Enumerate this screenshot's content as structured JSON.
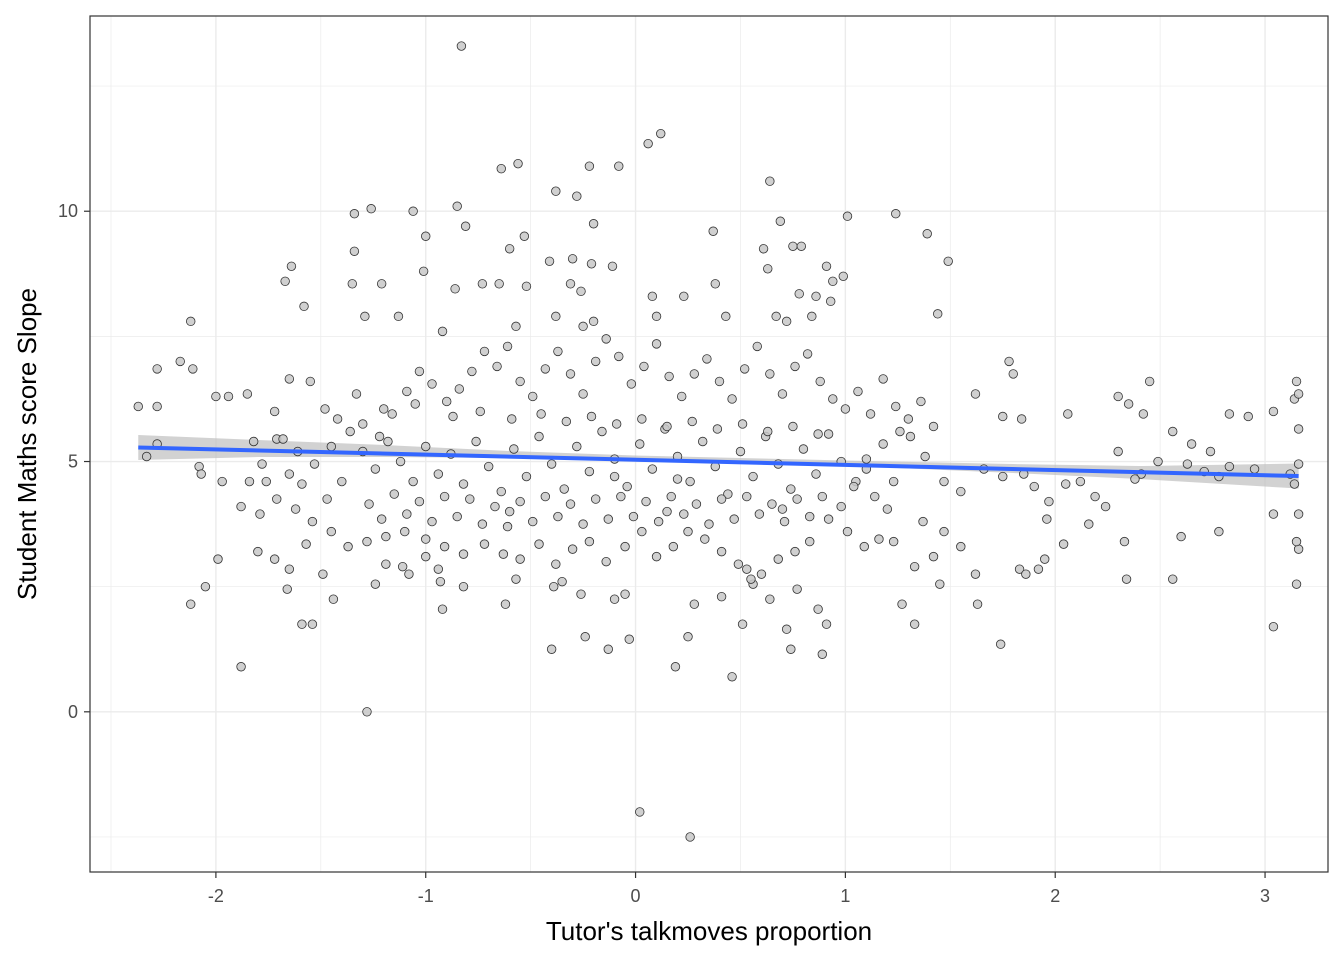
{
  "chart_data": {
    "type": "scatter",
    "xlabel": "Tutor's talkmoves proportion",
    "ylabel": "Student Maths score Slope",
    "xlim": [
      -2.6,
      3.3
    ],
    "ylim": [
      -3.2,
      13.9
    ],
    "xticks": [
      -2,
      -1,
      0,
      1,
      2,
      3
    ],
    "xtick_labels": [
      "-2",
      "-1",
      "0",
      "1",
      "2",
      "3"
    ],
    "yticks": [
      0,
      5,
      10
    ],
    "ytick_labels": [
      "0",
      "5",
      "10"
    ],
    "grid": true,
    "legend": "none",
    "theme": "bw",
    "colors": {
      "point_fill": "#c8c8c8",
      "point_stroke": "#333333",
      "trend_line": "#3366ff",
      "confidence_band": "#bfbfbf",
      "grid": "#ebebeb",
      "panel_border": "#333333"
    },
    "points": [
      [
        -0.83,
        13.3
      ],
      [
        0.12,
        11.55
      ],
      [
        0.06,
        11.35
      ],
      [
        -0.08,
        10.9
      ],
      [
        -0.56,
        10.95
      ],
      [
        -0.64,
        10.85
      ],
      [
        -0.22,
        10.9
      ],
      [
        -0.38,
        10.4
      ],
      [
        -0.28,
        10.3
      ],
      [
        0.64,
        10.6
      ],
      [
        -1.26,
        10.05
      ],
      [
        -1.34,
        9.95
      ],
      [
        -1.06,
        10.0
      ],
      [
        -0.85,
        10.1
      ],
      [
        -0.81,
        9.7
      ],
      [
        -0.2,
        9.75
      ],
      [
        1.01,
        9.9
      ],
      [
        1.24,
        9.95
      ],
      [
        0.69,
        9.8
      ],
      [
        1.39,
        9.55
      ],
      [
        -1.34,
        9.2
      ],
      [
        -1.0,
        9.5
      ],
      [
        -0.53,
        9.5
      ],
      [
        -0.6,
        9.25
      ],
      [
        -0.41,
        9.0
      ],
      [
        -0.3,
        9.05
      ],
      [
        -0.21,
        8.95
      ],
      [
        -0.11,
        8.9
      ],
      [
        0.37,
        9.6
      ],
      [
        0.61,
        9.25
      ],
      [
        0.75,
        9.3
      ],
      [
        0.79,
        9.3
      ],
      [
        0.91,
        8.9
      ],
      [
        1.49,
        9.0
      ],
      [
        -1.64,
        8.9
      ],
      [
        -1.67,
        8.6
      ],
      [
        -1.58,
        8.1
      ],
      [
        -1.35,
        8.55
      ],
      [
        -1.21,
        8.55
      ],
      [
        -1.01,
        8.8
      ],
      [
        -0.86,
        8.45
      ],
      [
        -0.73,
        8.55
      ],
      [
        -0.65,
        8.55
      ],
      [
        -0.52,
        8.5
      ],
      [
        -0.31,
        8.55
      ],
      [
        -0.26,
        8.4
      ],
      [
        0.08,
        8.3
      ],
      [
        0.23,
        8.3
      ],
      [
        0.38,
        8.55
      ],
      [
        0.63,
        8.85
      ],
      [
        0.94,
        8.6
      ],
      [
        0.99,
        8.7
      ],
      [
        0.78,
        8.35
      ],
      [
        0.86,
        8.3
      ],
      [
        0.93,
        8.2
      ],
      [
        -2.12,
        7.8
      ],
      [
        -1.29,
        7.9
      ],
      [
        -1.13,
        7.9
      ],
      [
        -0.92,
        7.6
      ],
      [
        -0.57,
        7.7
      ],
      [
        -0.38,
        7.9
      ],
      [
        -0.25,
        7.7
      ],
      [
        -0.2,
        7.8
      ],
      [
        0.1,
        7.9
      ],
      [
        0.43,
        7.9
      ],
      [
        0.67,
        7.9
      ],
      [
        0.72,
        7.8
      ],
      [
        0.84,
        7.9
      ],
      [
        1.44,
        7.95
      ],
      [
        -2.17,
        7.0
      ],
      [
        -2.11,
        6.85
      ],
      [
        -2.28,
        6.85
      ],
      [
        -1.85,
        6.35
      ],
      [
        -1.94,
        6.3
      ],
      [
        -2.0,
        6.3
      ],
      [
        -1.65,
        6.65
      ],
      [
        -1.55,
        6.6
      ],
      [
        -2.37,
        6.1
      ],
      [
        -2.28,
        6.1
      ],
      [
        -1.72,
        6.0
      ],
      [
        1.62,
        6.35
      ],
      [
        1.75,
        5.9
      ],
      [
        1.78,
        7.0
      ],
      [
        1.8,
        6.75
      ],
      [
        1.84,
        5.85
      ],
      [
        2.06,
        5.95
      ],
      [
        2.3,
        6.3
      ],
      [
        2.35,
        6.15
      ],
      [
        2.45,
        6.6
      ],
      [
        2.83,
        5.95
      ],
      [
        3.04,
        6.0
      ],
      [
        3.14,
        6.25
      ],
      [
        3.15,
        6.6
      ],
      [
        3.16,
        6.35
      ],
      [
        2.42,
        5.95
      ],
      [
        2.56,
        5.6
      ],
      [
        2.65,
        5.35
      ],
      [
        2.74,
        5.2
      ],
      [
        2.92,
        5.9
      ],
      [
        3.16,
        5.65
      ],
      [
        -2.33,
        5.1
      ],
      [
        -2.28,
        5.35
      ],
      [
        -2.08,
        4.9
      ],
      [
        -2.07,
        4.75
      ],
      [
        -1.97,
        4.6
      ],
      [
        -1.84,
        4.6
      ],
      [
        -1.76,
        4.6
      ],
      [
        -1.82,
        5.4
      ],
      [
        -1.71,
        5.45
      ],
      [
        -1.68,
        5.45
      ],
      [
        -1.78,
        4.95
      ],
      [
        -1.61,
        5.2
      ],
      [
        -1.65,
        4.75
      ],
      [
        -2.12,
        2.15
      ],
      [
        -2.05,
        2.5
      ],
      [
        -1.99,
        3.05
      ],
      [
        -1.88,
        0.9
      ],
      [
        -1.8,
        3.2
      ],
      [
        -1.72,
        3.05
      ],
      [
        -1.65,
        2.85
      ],
      [
        -1.66,
        2.45
      ],
      [
        -1.59,
        1.75
      ],
      [
        -1.57,
        3.35
      ],
      [
        -1.54,
        1.75
      ],
      [
        -1.49,
        2.75
      ],
      [
        -1.44,
        2.25
      ],
      [
        -1.28,
        0.0
      ],
      [
        -1.24,
        2.55
      ],
      [
        -1.19,
        2.95
      ],
      [
        -1.11,
        2.9
      ],
      [
        -1.08,
        2.75
      ],
      [
        -1.0,
        3.1
      ],
      [
        -0.94,
        2.85
      ],
      [
        -0.93,
        2.6
      ],
      [
        -0.92,
        2.05
      ],
      [
        -0.82,
        2.5
      ],
      [
        -0.62,
        2.15
      ],
      [
        -0.57,
        2.65
      ],
      [
        -0.4,
        1.25
      ],
      [
        -0.39,
        2.5
      ],
      [
        -0.35,
        2.6
      ],
      [
        -0.26,
        2.35
      ],
      [
        -0.24,
        1.5
      ],
      [
        -0.13,
        1.25
      ],
      [
        -0.1,
        2.25
      ],
      [
        -0.05,
        2.35
      ],
      [
        -0.03,
        1.45
      ],
      [
        0.02,
        -2.0
      ],
      [
        0.26,
        -2.5
      ],
      [
        0.25,
        1.5
      ],
      [
        0.19,
        0.9
      ],
      [
        0.28,
        2.15
      ],
      [
        0.41,
        2.3
      ],
      [
        0.46,
        0.7
      ],
      [
        0.51,
        1.75
      ],
      [
        0.56,
        2.55
      ],
      [
        0.64,
        2.25
      ],
      [
        0.72,
        1.65
      ],
      [
        0.77,
        2.45
      ],
      [
        0.87,
        2.05
      ],
      [
        0.91,
        1.75
      ],
      [
        0.89,
        1.15
      ],
      [
        0.74,
        1.25
      ],
      [
        1.27,
        2.15
      ],
      [
        1.33,
        1.75
      ],
      [
        1.45,
        2.55
      ],
      [
        1.63,
        2.15
      ],
      [
        1.62,
        2.75
      ],
      [
        1.74,
        1.35
      ],
      [
        1.83,
        2.85
      ],
      [
        1.86,
        2.75
      ],
      [
        1.92,
        2.85
      ],
      [
        1.95,
        3.05
      ],
      [
        1.96,
        3.85
      ],
      [
        1.97,
        4.2
      ],
      [
        2.04,
        3.35
      ],
      [
        2.16,
        3.75
      ],
      [
        2.24,
        4.1
      ],
      [
        2.33,
        3.4
      ],
      [
        2.34,
        2.65
      ],
      [
        2.56,
        2.65
      ],
      [
        2.6,
        3.5
      ],
      [
        2.78,
        3.6
      ],
      [
        3.04,
        1.7
      ],
      [
        3.04,
        3.95
      ],
      [
        3.15,
        2.55
      ],
      [
        3.16,
        3.25
      ],
      [
        3.15,
        3.4
      ],
      [
        3.16,
        3.95
      ],
      [
        3.14,
        4.55
      ],
      [
        3.16,
        4.95
      ],
      [
        3.12,
        4.75
      ],
      [
        2.95,
        4.85
      ],
      [
        2.83,
        4.9
      ],
      [
        2.78,
        4.7
      ],
      [
        2.71,
        4.8
      ],
      [
        2.63,
        4.95
      ],
      [
        2.49,
        5.0
      ],
      [
        2.41,
        4.75
      ],
      [
        2.38,
        4.65
      ],
      [
        2.3,
        5.2
      ],
      [
        2.19,
        4.3
      ],
      [
        2.12,
        4.6
      ],
      [
        2.05,
        4.55
      ],
      [
        1.9,
        4.5
      ],
      [
        1.85,
        4.75
      ],
      [
        1.75,
        4.7
      ],
      [
        1.66,
        4.85
      ],
      [
        1.55,
        4.4
      ],
      [
        1.47,
        4.6
      ],
      [
        1.38,
        5.1
      ],
      [
        1.31,
        5.5
      ],
      [
        1.26,
        5.6
      ],
      [
        1.18,
        5.35
      ],
      [
        1.1,
        5.05
      ],
      [
        1.05,
        4.6
      ],
      [
        0.98,
        4.1
      ],
      [
        1.14,
        4.3
      ],
      [
        1.23,
        4.6
      ],
      [
        1.37,
        3.8
      ],
      [
        1.47,
        3.6
      ],
      [
        1.55,
        3.3
      ],
      [
        1.42,
        3.1
      ],
      [
        1.33,
        2.9
      ],
      [
        1.23,
        3.4
      ],
      [
        1.16,
        3.45
      ],
      [
        1.09,
        3.3
      ],
      [
        1.01,
        3.6
      ],
      [
        0.92,
        3.85
      ],
      [
        0.83,
        3.4
      ],
      [
        0.76,
        3.2
      ],
      [
        0.68,
        3.05
      ],
      [
        0.6,
        2.75
      ],
      [
        0.53,
        2.85
      ],
      [
        0.55,
        2.65
      ],
      [
        0.49,
        2.95
      ],
      [
        0.41,
        3.2
      ],
      [
        0.33,
        3.45
      ],
      [
        0.25,
        3.6
      ],
      [
        0.18,
        3.3
      ],
      [
        0.1,
        3.1
      ],
      [
        0.03,
        3.6
      ],
      [
        -0.05,
        3.3
      ],
      [
        -0.14,
        3.0
      ],
      [
        -0.22,
        3.4
      ],
      [
        -0.3,
        3.25
      ],
      [
        -0.38,
        2.95
      ],
      [
        -0.46,
        3.35
      ],
      [
        -0.55,
        3.05
      ],
      [
        -0.63,
        3.15
      ],
      [
        -0.72,
        3.35
      ],
      [
        -0.82,
        3.15
      ],
      [
        -0.91,
        3.3
      ],
      [
        -1.0,
        3.45
      ],
      [
        -1.1,
        3.6
      ],
      [
        -1.19,
        3.5
      ],
      [
        -1.28,
        3.4
      ],
      [
        -1.37,
        3.3
      ],
      [
        -1.45,
        3.6
      ],
      [
        -1.54,
        3.8
      ],
      [
        -1.62,
        4.05
      ],
      [
        -1.71,
        4.25
      ],
      [
        -1.79,
        3.95
      ],
      [
        -1.88,
        4.1
      ],
      [
        -1.48,
        6.05
      ],
      [
        -1.42,
        5.85
      ],
      [
        -1.36,
        5.6
      ],
      [
        -1.3,
        5.75
      ],
      [
        -1.22,
        5.5
      ],
      [
        -1.16,
        5.95
      ],
      [
        -1.09,
        6.4
      ],
      [
        -1.03,
        6.8
      ],
      [
        -0.97,
        6.55
      ],
      [
        -0.9,
        6.2
      ],
      [
        -0.84,
        6.45
      ],
      [
        -0.78,
        6.8
      ],
      [
        -0.72,
        7.2
      ],
      [
        -0.66,
        6.9
      ],
      [
        -0.61,
        7.3
      ],
      [
        -0.55,
        6.6
      ],
      [
        -0.49,
        6.3
      ],
      [
        -0.43,
        6.85
      ],
      [
        -0.37,
        7.2
      ],
      [
        -0.31,
        6.75
      ],
      [
        -0.25,
        6.35
      ],
      [
        -0.19,
        7.0
      ],
      [
        -0.14,
        7.45
      ],
      [
        -0.08,
        7.1
      ],
      [
        -0.02,
        6.55
      ],
      [
        0.04,
        6.9
      ],
      [
        0.1,
        7.35
      ],
      [
        0.16,
        6.7
      ],
      [
        0.22,
        6.3
      ],
      [
        0.28,
        6.75
      ],
      [
        0.34,
        7.05
      ],
      [
        0.4,
        6.6
      ],
      [
        0.46,
        6.25
      ],
      [
        0.52,
        6.85
      ],
      [
        0.58,
        7.3
      ],
      [
        0.64,
        6.75
      ],
      [
        0.7,
        6.35
      ],
      [
        0.76,
        6.9
      ],
      [
        0.82,
        7.15
      ],
      [
        0.88,
        6.6
      ],
      [
        0.94,
        6.25
      ],
      [
        1.0,
        6.05
      ],
      [
        1.06,
        6.4
      ],
      [
        1.12,
        5.95
      ],
      [
        1.18,
        6.65
      ],
      [
        1.24,
        6.1
      ],
      [
        1.3,
        5.85
      ],
      [
        1.36,
        6.2
      ],
      [
        1.42,
        5.7
      ],
      [
        -1.3,
        5.2
      ],
      [
        -1.24,
        4.85
      ],
      [
        -1.18,
        5.4
      ],
      [
        -1.12,
        5.0
      ],
      [
        -1.06,
        4.6
      ],
      [
        -1.0,
        5.3
      ],
      [
        -0.94,
        4.75
      ],
      [
        -0.88,
        5.15
      ],
      [
        -0.82,
        4.55
      ],
      [
        -0.76,
        5.4
      ],
      [
        -0.7,
        4.9
      ],
      [
        -0.64,
        4.4
      ],
      [
        -0.58,
        5.25
      ],
      [
        -0.52,
        4.7
      ],
      [
        -0.46,
        5.5
      ],
      [
        -0.4,
        4.95
      ],
      [
        -0.34,
        4.45
      ],
      [
        -0.28,
        5.3
      ],
      [
        -0.22,
        4.8
      ],
      [
        -0.16,
        5.6
      ],
      [
        -0.1,
        5.05
      ],
      [
        -0.04,
        4.5
      ],
      [
        0.02,
        5.35
      ],
      [
        0.08,
        4.85
      ],
      [
        0.14,
        5.65
      ],
      [
        0.2,
        5.1
      ],
      [
        0.26,
        4.6
      ],
      [
        0.32,
        5.4
      ],
      [
        0.38,
        4.9
      ],
      [
        0.44,
        4.35
      ],
      [
        0.5,
        5.2
      ],
      [
        0.56,
        4.7
      ],
      [
        0.62,
        5.5
      ],
      [
        0.68,
        4.95
      ],
      [
        0.74,
        4.45
      ],
      [
        0.8,
        5.25
      ],
      [
        0.86,
        4.75
      ],
      [
        0.92,
        5.55
      ],
      [
        0.98,
        5.0
      ],
      [
        1.04,
        4.5
      ],
      [
        -1.27,
        4.15
      ],
      [
        -1.21,
        3.85
      ],
      [
        -1.15,
        4.35
      ],
      [
        -1.09,
        3.95
      ],
      [
        -1.03,
        4.2
      ],
      [
        -0.97,
        3.8
      ],
      [
        -0.91,
        4.3
      ],
      [
        -0.85,
        3.9
      ],
      [
        -0.79,
        4.25
      ],
      [
        -0.73,
        3.75
      ],
      [
        -0.67,
        4.1
      ],
      [
        -0.61,
        3.7
      ],
      [
        -0.55,
        4.2
      ],
      [
        -0.49,
        3.8
      ],
      [
        -0.43,
        4.3
      ],
      [
        -0.37,
        3.9
      ],
      [
        -0.31,
        4.15
      ],
      [
        -0.25,
        3.75
      ],
      [
        -0.19,
        4.25
      ],
      [
        -0.13,
        3.85
      ],
      [
        -0.07,
        4.3
      ],
      [
        -0.01,
        3.9
      ],
      [
        0.05,
        4.2
      ],
      [
        0.11,
        3.8
      ],
      [
        0.17,
        4.3
      ],
      [
        0.23,
        3.95
      ],
      [
        0.29,
        4.15
      ],
      [
        0.35,
        3.75
      ],
      [
        0.41,
        4.25
      ],
      [
        0.47,
        3.85
      ],
      [
        0.53,
        4.3
      ],
      [
        0.59,
        3.95
      ],
      [
        0.65,
        4.15
      ],
      [
        0.71,
        3.8
      ],
      [
        0.77,
        4.25
      ],
      [
        0.83,
        3.9
      ],
      [
        0.89,
        4.3
      ],
      [
        -1.33,
        6.35
      ],
      [
        -1.2,
        6.05
      ],
      [
        -1.05,
        6.15
      ],
      [
        -0.87,
        5.9
      ],
      [
        -0.74,
        6.0
      ],
      [
        -0.59,
        5.85
      ],
      [
        -0.45,
        5.95
      ],
      [
        -0.33,
        5.8
      ],
      [
        -0.21,
        5.9
      ],
      [
        -0.09,
        5.75
      ],
      [
        0.03,
        5.85
      ],
      [
        0.15,
        5.7
      ],
      [
        0.27,
        5.8
      ],
      [
        0.39,
        5.65
      ],
      [
        0.51,
        5.75
      ],
      [
        0.63,
        5.6
      ],
      [
        0.75,
        5.7
      ],
      [
        0.87,
        5.55
      ],
      [
        -1.4,
        4.6
      ],
      [
        -1.47,
        4.25
      ],
      [
        -1.53,
        4.95
      ],
      [
        -1.59,
        4.55
      ],
      [
        -1.45,
        5.3
      ],
      [
        0.15,
        4.0
      ],
      [
        0.2,
        4.65
      ],
      [
        -0.1,
        4.7
      ],
      [
        -0.6,
        4.0
      ],
      [
        0.7,
        4.05
      ],
      [
        1.1,
        4.85
      ],
      [
        1.2,
        4.05
      ]
    ],
    "trend_line": {
      "x": [
        -2.37,
        3.16
      ],
      "y": [
        5.28,
        4.71
      ]
    },
    "confidence_band": {
      "x": [
        -2.37,
        -1.8,
        -1.2,
        -0.6,
        0.0,
        0.6,
        1.2,
        1.8,
        2.4,
        3.16
      ],
      "lower": [
        5.03,
        5.09,
        5.09,
        5.07,
        5.02,
        4.96,
        4.88,
        4.77,
        4.65,
        4.46
      ],
      "upper": [
        5.53,
        5.43,
        5.33,
        5.21,
        5.12,
        5.06,
        5.0,
        4.95,
        4.91,
        4.96
      ]
    }
  }
}
